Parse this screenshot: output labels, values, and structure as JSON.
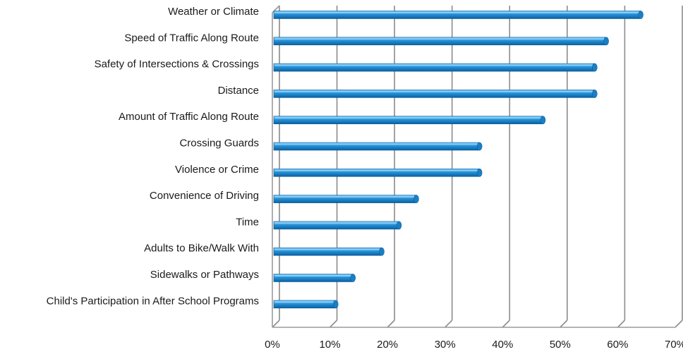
{
  "chart_data": {
    "type": "bar",
    "orientation": "horizontal",
    "categories": [
      "Weather or Climate",
      "Speed of Traffic Along Route",
      "Safety of Intersections & Crossings",
      "Distance",
      "Amount of Traffic Along Route",
      "Crossing Guards",
      "Violence or Crime",
      "Convenience of Driving",
      "Time",
      "Adults to Bike/Walk With",
      "Sidewalks or Pathways",
      "Child's Participation in After School Programs"
    ],
    "values": [
      64,
      58,
      56,
      56,
      47,
      36,
      36,
      25,
      22,
      19,
      14,
      11
    ],
    "xlim": [
      0,
      70
    ],
    "xticks": [
      "0%",
      "10%",
      "20%",
      "30%",
      "40%",
      "50%",
      "60%",
      "70%"
    ],
    "grid": true,
    "bar_color": "#1f8fd6"
  }
}
